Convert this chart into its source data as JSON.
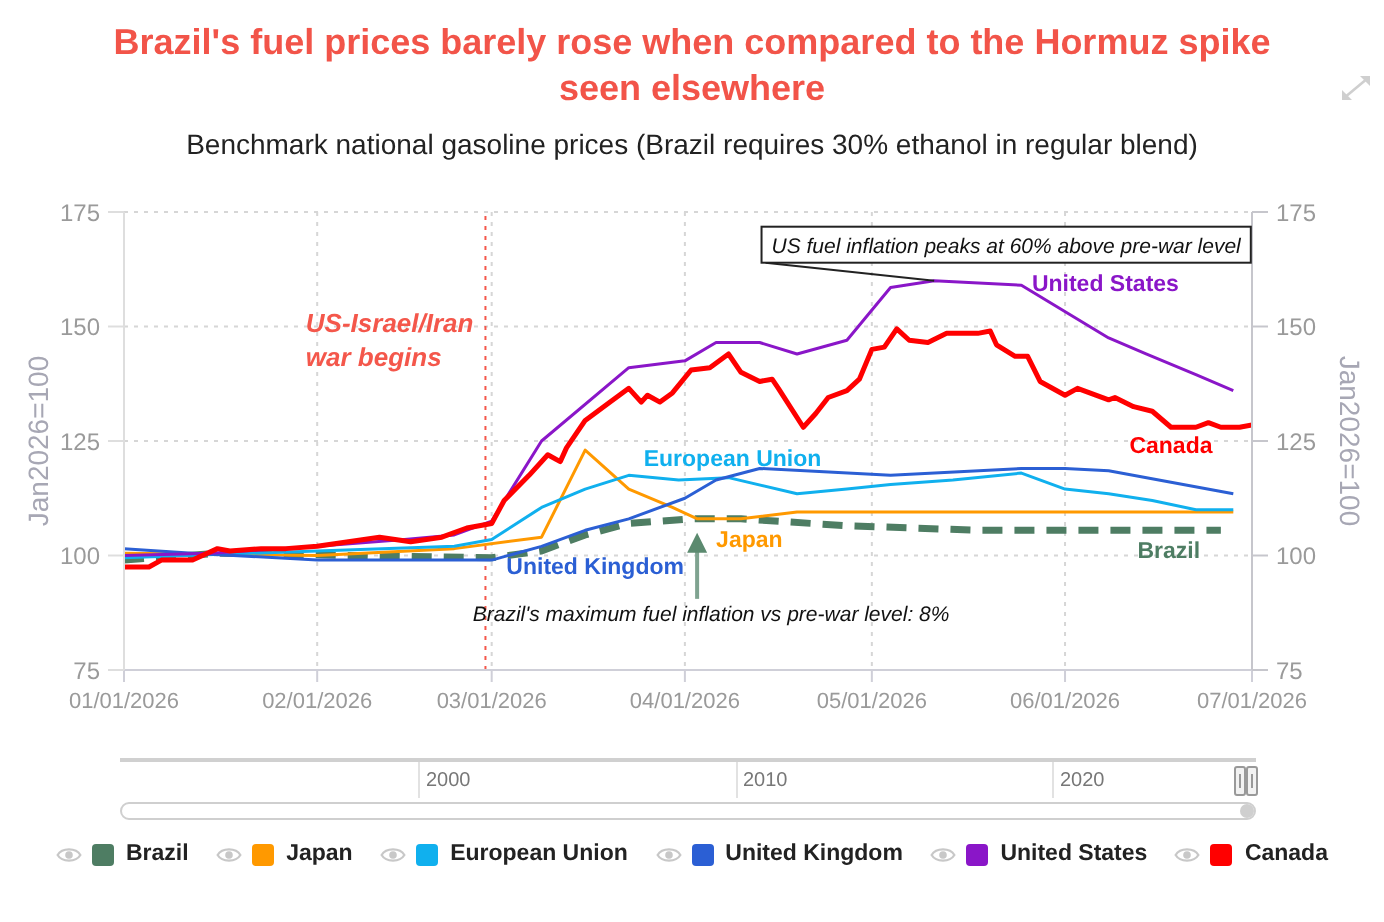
{
  "chart_data": [
    {
      "type": "line",
      "title": "Brazil's fuel prices barely rose when compared to the Hormuz spike seen elsewhere",
      "subtitle": "Benchmark national gasoline prices (Brazil requires 30% ethanol in regular blend)",
      "ylabel": "Jan2026=100",
      "y2label": "Jan2026=100",
      "xlim": [
        "2026-01-01",
        "2026-07-01"
      ],
      "xticks": [
        {
          "value": "2026-01-01",
          "label": "01/01/2026"
        },
        {
          "value": "2026-02-01",
          "label": "02/01/2026"
        },
        {
          "value": "2026-03-01",
          "label": "03/01/2026"
        },
        {
          "value": "2026-04-01",
          "label": "04/01/2026"
        },
        {
          "value": "2026-05-01",
          "label": "05/01/2026"
        },
        {
          "value": "2026-06-01",
          "label": "06/01/2026"
        },
        {
          "value": "2026-07-01",
          "label": "07/01/2026"
        }
      ],
      "ylim": [
        75,
        175
      ],
      "yticks": [
        75,
        100,
        125,
        150,
        175
      ],
      "y2lim": [
        75,
        175
      ],
      "y2ticks": [
        75,
        100,
        125,
        150,
        175
      ],
      "grid": true,
      "legend": "bottom",
      "series": [
        {
          "name": "Brazil",
          "color": "#4e7d63",
          "line_style": "dashed",
          "x": [
            "2026-01-01",
            "2026-01-16",
            "2026-03-01",
            "2026-03-09",
            "2026-03-16",
            "2026-03-23",
            "2026-04-02",
            "2026-04-10",
            "2026-04-27",
            "2026-05-18",
            "2026-06-08",
            "2026-06-26"
          ],
          "values": [
            99,
            100.5,
            99.5,
            101,
            104.5,
            107,
            108,
            108,
            106.5,
            105.5,
            105.5,
            105.5
          ]
        },
        {
          "name": "Japan",
          "color": "#ff9900",
          "x": [
            "2026-01-01",
            "2026-02-01",
            "2026-02-23",
            "2026-03-09",
            "2026-03-16",
            "2026-03-23",
            "2026-03-30",
            "2026-04-03",
            "2026-04-10",
            "2026-04-19",
            "2026-06-28"
          ],
          "values": [
            100.5,
            100,
            101.5,
            104,
            123,
            114.5,
            110.5,
            108,
            108,
            109.5,
            109.5
          ]
        },
        {
          "name": "European Union",
          "color": "#10b0ee",
          "x": [
            "2026-01-01",
            "2026-02-01",
            "2026-02-23",
            "2026-03-01",
            "2026-03-09",
            "2026-03-16",
            "2026-03-23",
            "2026-03-31",
            "2026-04-08",
            "2026-04-19",
            "2026-04-27",
            "2026-05-04",
            "2026-05-14",
            "2026-05-25",
            "2026-06-01",
            "2026-06-08",
            "2026-06-15",
            "2026-06-22",
            "2026-06-28"
          ],
          "values": [
            99.5,
            101,
            102,
            103.5,
            110.5,
            114.5,
            117.5,
            116.5,
            117,
            113.5,
            114.5,
            115.5,
            116.5,
            118,
            114.5,
            113.5,
            112,
            110,
            110
          ]
        },
        {
          "name": "United Kingdom",
          "color": "#2b5fd4",
          "x": [
            "2026-01-01",
            "2026-01-12",
            "2026-02-01",
            "2026-03-01",
            "2026-03-09",
            "2026-03-16",
            "2026-03-23",
            "2026-04-01",
            "2026-04-06",
            "2026-04-13",
            "2026-05-04",
            "2026-05-25",
            "2026-06-01",
            "2026-06-08",
            "2026-06-28"
          ],
          "values": [
            101.5,
            100.5,
            99,
            99,
            102,
            105.5,
            108,
            112.5,
            116.5,
            119,
            117.5,
            119,
            119,
            118.5,
            113.5
          ]
        },
        {
          "name": "United States",
          "color": "#8a16c8",
          "x": [
            "2026-01-01",
            "2026-01-15",
            "2026-02-01",
            "2026-02-15",
            "2026-02-23",
            "2026-03-01",
            "2026-03-09",
            "2026-03-23",
            "2026-04-01",
            "2026-04-06",
            "2026-04-13",
            "2026-04-19",
            "2026-04-27",
            "2026-05-04",
            "2026-05-11",
            "2026-05-25",
            "2026-06-08",
            "2026-06-14",
            "2026-06-22",
            "2026-06-28"
          ],
          "values": [
            100,
            100.5,
            102,
            103.5,
            104.5,
            107.5,
            125,
            141,
            142.5,
            146.5,
            146.5,
            144,
            147,
            158.5,
            160,
            159,
            147.5,
            144,
            139.5,
            136
          ]
        },
        {
          "name": "Canada",
          "color": "#ff0000",
          "x": [
            "2026-01-01",
            "2026-01-05",
            "2026-01-07",
            "2026-01-12",
            "2026-01-16",
            "2026-01-18",
            "2026-01-23",
            "2026-01-27",
            "2026-02-01",
            "2026-02-06",
            "2026-02-11",
            "2026-02-16",
            "2026-02-21",
            "2026-02-25",
            "2026-03-01",
            "2026-03-03",
            "2026-03-07",
            "2026-03-10",
            "2026-03-12",
            "2026-03-13",
            "2026-03-16",
            "2026-03-20",
            "2026-03-23",
            "2026-03-25",
            "2026-03-26",
            "2026-03-28",
            "2026-03-30",
            "2026-04-02",
            "2026-04-05",
            "2026-04-08",
            "2026-04-10",
            "2026-04-13",
            "2026-04-15",
            "2026-04-16",
            "2026-04-20",
            "2026-04-22",
            "2026-04-24",
            "2026-04-27",
            "2026-04-29",
            "2026-05-01",
            "2026-05-03",
            "2026-05-05",
            "2026-05-07",
            "2026-05-10",
            "2026-05-13",
            "2026-05-18",
            "2026-05-20",
            "2026-05-21",
            "2026-05-24",
            "2026-05-26",
            "2026-05-28",
            "2026-06-01",
            "2026-06-03",
            "2026-06-08",
            "2026-06-09",
            "2026-06-12",
            "2026-06-15",
            "2026-06-18",
            "2026-06-22",
            "2026-06-24",
            "2026-06-26",
            "2026-06-29",
            "2026-07-01"
          ],
          "values": [
            97.5,
            97.5,
            99,
            99,
            101.5,
            101,
            101.5,
            101.5,
            102,
            103,
            104,
            103,
            104,
            106,
            107,
            112,
            117.5,
            122,
            120.5,
            123.5,
            129.5,
            133.5,
            136.5,
            133.5,
            135,
            133.5,
            135.5,
            140.5,
            141,
            144,
            140,
            138,
            138.5,
            136.5,
            128,
            131,
            134.5,
            136,
            138.5,
            145,
            145.5,
            149.5,
            147,
            146.5,
            148.5,
            148.5,
            149,
            146,
            143.5,
            143.5,
            138,
            135,
            136.5,
            134,
            134.5,
            132.5,
            131.5,
            128,
            128,
            129,
            128,
            128,
            128.5
          ]
        }
      ],
      "ref_lines": [
        {
          "axis": "x",
          "value": "2026-02-28",
          "label": "US-Israel/Iran war begins",
          "color": "#f4574b",
          "line_style": "dotted"
        }
      ],
      "annotations": [
        {
          "text": "US fuel inflation peaks at 60% above pre-war level",
          "x": "2026-05-11",
          "y": 160
        },
        "Brazil's maximum fuel inflation vs pre-war level: 8%"
      ]
    },
    {
      "type": "other",
      "annotations": [
        "2000",
        "2010",
        "2020"
      ]
    }
  ]
}
